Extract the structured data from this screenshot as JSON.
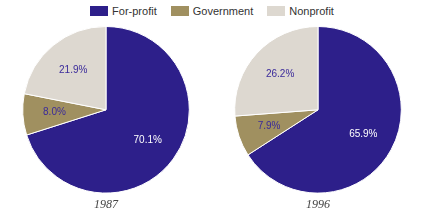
{
  "chart_data": [
    {
      "type": "pie",
      "title": "1987",
      "categories": [
        "For-profit",
        "Government",
        "Nonprofit"
      ],
      "values": [
        70.1,
        8.0,
        21.9
      ],
      "value_labels": [
        "70.1%",
        "8.0%",
        "21.9%"
      ],
      "colors": [
        "#2d1f8a",
        "#a09060",
        "#ddd8d0"
      ],
      "data_labels": true,
      "legend": "top"
    },
    {
      "type": "pie",
      "title": "1996",
      "categories": [
        "For-profit",
        "Government",
        "Nonprofit"
      ],
      "values": [
        65.9,
        7.9,
        26.2
      ],
      "value_labels": [
        "65.9%",
        "7.9%",
        "26.2%"
      ],
      "colors": [
        "#2d1f8a",
        "#a09060",
        "#ddd8d0"
      ],
      "data_labels": true
    }
  ]
}
